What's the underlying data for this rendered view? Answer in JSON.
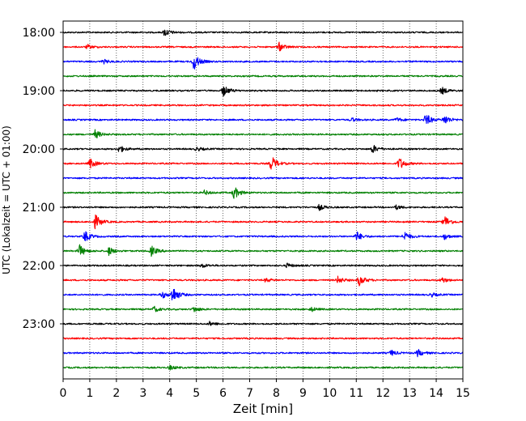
{
  "chart_data": {
    "type": "line",
    "title": "",
    "xlabel": "Zeit  [min]",
    "ylabel": "UTC (Lokalzeit = UTC + 01:00)",
    "xlim": [
      0,
      15
    ],
    "x_ticks": [
      "0",
      "1",
      "2",
      "3",
      "4",
      "5",
      "6",
      "7",
      "8",
      "9",
      "10",
      "11",
      "12",
      "13",
      "14",
      "15"
    ],
    "y_tick_labels": [
      "18:00",
      "19:00",
      "20:00",
      "21:00",
      "22:00",
      "23:00"
    ],
    "grid": "vertical dotted",
    "trace_interval_minutes": 15,
    "start_time": "18:00",
    "trace_colors": [
      "#000000",
      "#ff0000",
      "#0000ff",
      "#008000"
    ],
    "traces": [
      {
        "start": "18:00",
        "events": [
          {
            "t": 3.8,
            "amp": 0.6
          }
        ]
      },
      {
        "start": "18:15",
        "events": [
          {
            "t": 8.1,
            "amp": 0.6
          },
          {
            "t": 0.9,
            "amp": 0.3
          }
        ]
      },
      {
        "start": "18:30",
        "events": [
          {
            "t": 4.9,
            "amp": 1.2
          },
          {
            "t": 1.5,
            "amp": 0.3
          }
        ]
      },
      {
        "start": "18:45",
        "events": []
      },
      {
        "start": "19:00",
        "events": [
          {
            "t": 6.0,
            "amp": 0.8
          },
          {
            "t": 14.2,
            "amp": 0.5
          }
        ]
      },
      {
        "start": "19:15",
        "events": []
      },
      {
        "start": "19:30",
        "events": [
          {
            "t": 13.6,
            "amp": 0.9
          },
          {
            "t": 14.3,
            "amp": 0.7
          },
          {
            "t": 10.8,
            "amp": 0.3
          },
          {
            "t": 12.5,
            "amp": 0.3
          }
        ]
      },
      {
        "start": "19:45",
        "events": [
          {
            "t": 1.2,
            "amp": 0.6
          }
        ]
      },
      {
        "start": "20:00",
        "events": [
          {
            "t": 2.1,
            "amp": 0.5
          },
          {
            "t": 11.6,
            "amp": 0.6
          },
          {
            "t": 5.0,
            "amp": 0.3
          }
        ]
      },
      {
        "start": "20:15",
        "events": [
          {
            "t": 1.0,
            "amp": 0.7
          },
          {
            "t": 7.8,
            "amp": 1.1
          },
          {
            "t": 12.6,
            "amp": 0.9
          }
        ]
      },
      {
        "start": "20:30",
        "events": []
      },
      {
        "start": "20:45",
        "events": [
          {
            "t": 6.4,
            "amp": 0.9
          },
          {
            "t": 5.3,
            "amp": 0.3
          }
        ]
      },
      {
        "start": "21:00",
        "events": [
          {
            "t": 9.6,
            "amp": 0.4
          },
          {
            "t": 12.5,
            "amp": 0.3
          }
        ]
      },
      {
        "start": "21:15",
        "events": [
          {
            "t": 1.2,
            "amp": 1.0
          },
          {
            "t": 14.3,
            "amp": 0.9
          }
        ]
      },
      {
        "start": "21:30",
        "events": [
          {
            "t": 0.8,
            "amp": 0.8
          },
          {
            "t": 11.0,
            "amp": 0.7
          },
          {
            "t": 12.8,
            "amp": 0.7
          },
          {
            "t": 14.3,
            "amp": 0.4
          }
        ]
      },
      {
        "start": "21:45",
        "events": [
          {
            "t": 0.6,
            "amp": 0.9
          },
          {
            "t": 1.7,
            "amp": 0.6
          },
          {
            "t": 3.3,
            "amp": 0.7
          }
        ]
      },
      {
        "start": "22:00",
        "events": [
          {
            "t": 5.2,
            "amp": 0.3
          },
          {
            "t": 8.4,
            "amp": 0.3
          }
        ]
      },
      {
        "start": "22:15",
        "events": [
          {
            "t": 10.3,
            "amp": 0.5
          },
          {
            "t": 11.1,
            "amp": 0.8
          },
          {
            "t": 14.2,
            "amp": 0.4
          },
          {
            "t": 7.6,
            "amp": 0.3
          }
        ]
      },
      {
        "start": "22:30",
        "events": [
          {
            "t": 4.1,
            "amp": 1.2
          },
          {
            "t": 3.7,
            "amp": 0.5
          },
          {
            "t": 13.8,
            "amp": 0.3
          }
        ]
      },
      {
        "start": "22:45",
        "events": [
          {
            "t": 3.4,
            "amp": 0.4
          },
          {
            "t": 4.9,
            "amp": 0.4
          },
          {
            "t": 9.3,
            "amp": 0.3
          }
        ]
      },
      {
        "start": "23:00",
        "events": [
          {
            "t": 5.5,
            "amp": 0.3
          }
        ]
      },
      {
        "start": "23:15",
        "events": []
      },
      {
        "start": "23:30",
        "events": [
          {
            "t": 12.3,
            "amp": 0.4
          },
          {
            "t": 13.3,
            "amp": 0.5
          }
        ]
      },
      {
        "start": "23:45",
        "events": [
          {
            "t": 4.0,
            "amp": 0.3
          }
        ]
      }
    ]
  }
}
